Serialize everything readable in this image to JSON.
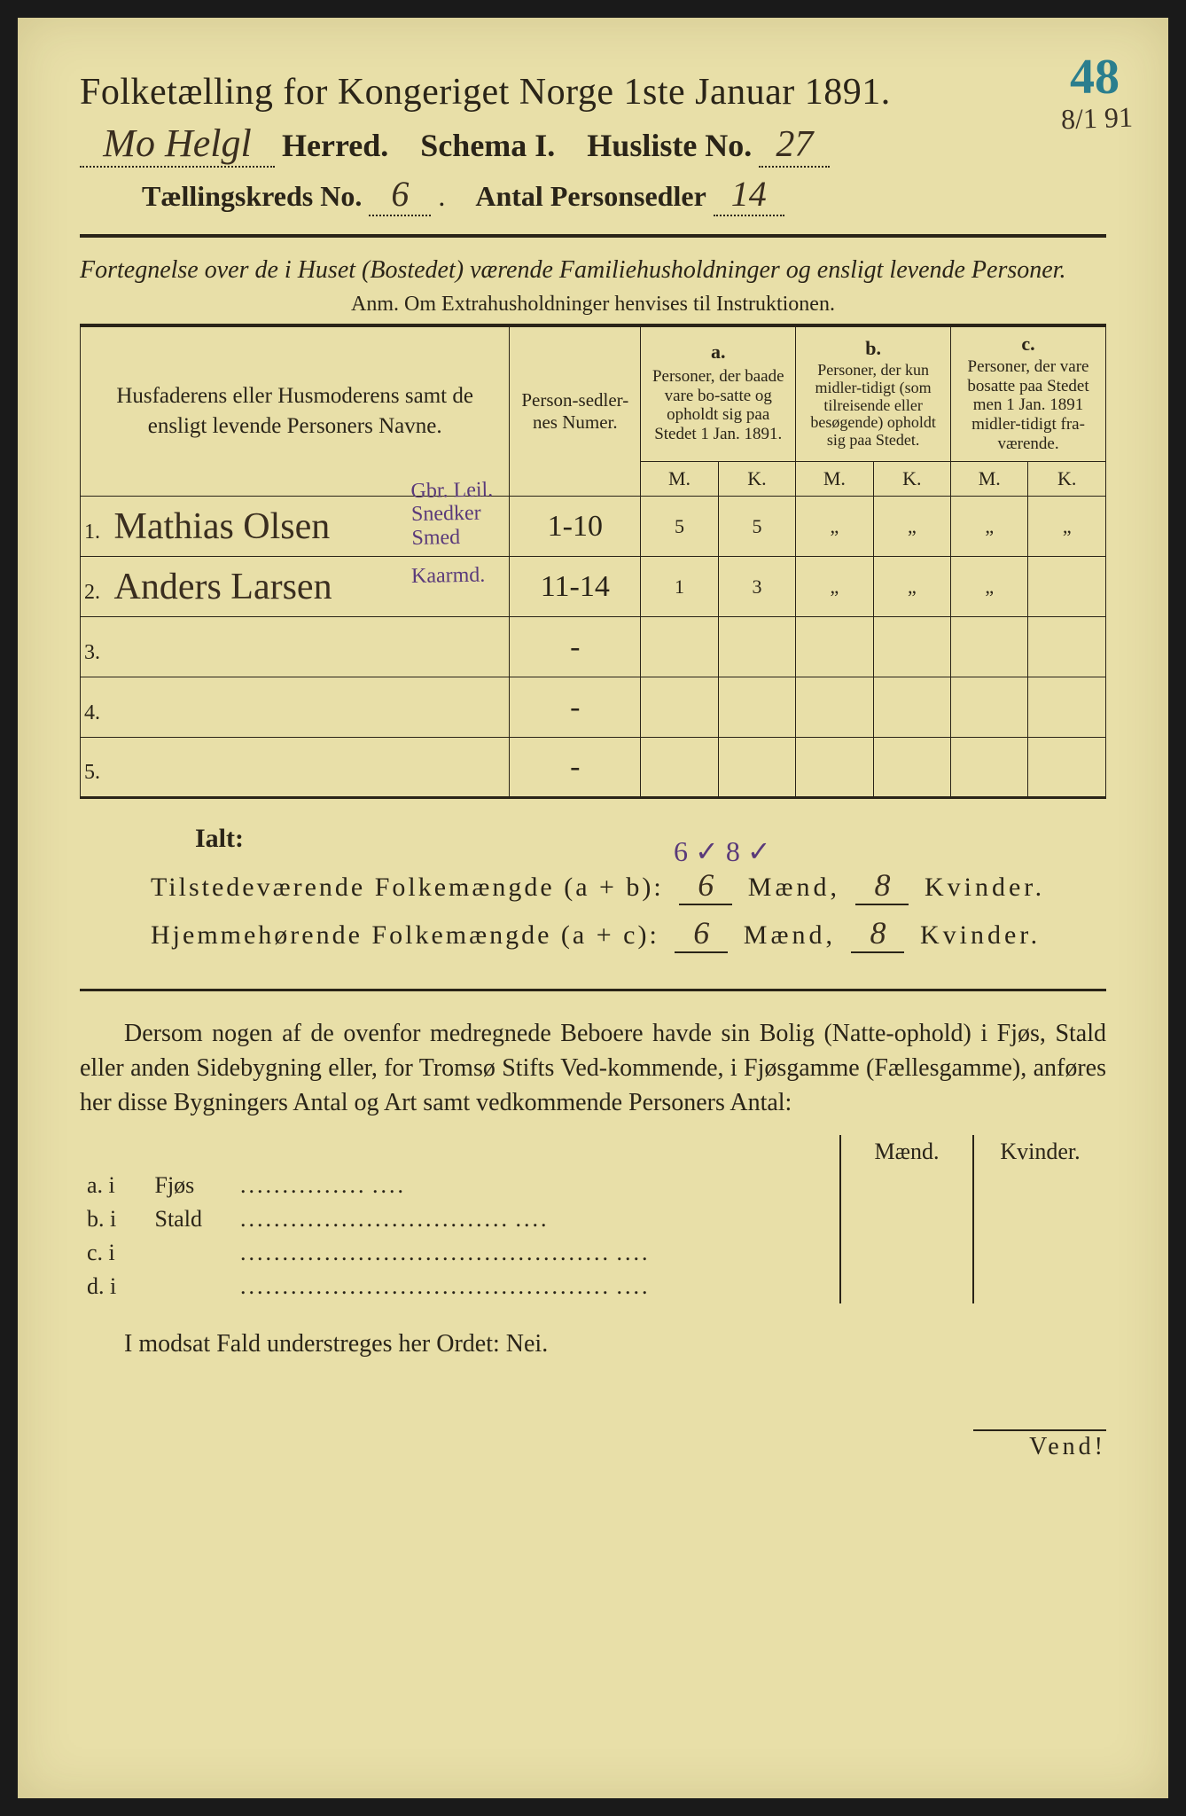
{
  "annotations": {
    "corner_number": "48",
    "corner_date": "8/1 91"
  },
  "header": {
    "title": "Folketælling for Kongeriget Norge 1ste Januar 1891.",
    "herred_value": "Mo Helgl",
    "herred_label": "Herred.",
    "schema_label": "Schema I.",
    "husliste_label": "Husliste No.",
    "husliste_value": "27",
    "kreds_label": "Tællingskreds No.",
    "kreds_value": "6",
    "antal_label": "Antal Personsedler",
    "antal_value": "14"
  },
  "intro": {
    "line1": "Fortegnelse over de i Huset (Bostedet) værende Familiehusholdninger og ensligt levende Personer.",
    "anm": "Anm.  Om Extrahusholdninger henvises til Instruktionen."
  },
  "table": {
    "col_names": "Husfaderens eller Husmoderens samt de ensligt levende Personers Navne.",
    "col_ps": "Person-sedler-nes Numer.",
    "col_a_label": "a.",
    "col_a": "Personer, der baade vare bo-satte og opholdt sig paa Stedet 1 Jan. 1891.",
    "col_b_label": "b.",
    "col_b": "Personer, der kun midler-tidigt (som tilreisende eller besøgende) opholdt sig paa Stedet.",
    "col_c_label": "c.",
    "col_c": "Personer, der vare bosatte paa Stedet men 1 Jan. 1891 midler-tidigt fra-værende.",
    "m": "M.",
    "k": "K.",
    "rows": [
      {
        "n": "1.",
        "name": "Mathias Olsen",
        "ps": "1-10",
        "am": "5",
        "ak": "5",
        "bm": "„",
        "bk": "„",
        "cm": "„",
        "ck": "„",
        "note": "Gbr. Leil.\nSnedker\nSmed"
      },
      {
        "n": "2.",
        "name": "Anders Larsen",
        "ps": "11-14",
        "am": "1",
        "ak": "3",
        "bm": "„",
        "bk": "„",
        "cm": "„",
        "ck": "",
        "note": "Kaarmd."
      },
      {
        "n": "3.",
        "name": "",
        "ps": "-",
        "am": "",
        "ak": "",
        "bm": "",
        "bk": "",
        "cm": "",
        "ck": "",
        "note": ""
      },
      {
        "n": "4.",
        "name": "",
        "ps": "-",
        "am": "",
        "ak": "",
        "bm": "",
        "bk": "",
        "cm": "",
        "ck": "",
        "note": ""
      },
      {
        "n": "5.",
        "name": "",
        "ps": "-",
        "am": "",
        "ak": "",
        "bm": "",
        "bk": "",
        "cm": "",
        "ck": "",
        "note": ""
      }
    ]
  },
  "totals": {
    "ialt": "Ialt:",
    "checks": "6 ✓   8 ✓",
    "line_ab": "Tilstedeværende Folkemængde (a + b):",
    "line_ac": "Hjemmehørende Folkemængde (a + c):",
    "ab_m": "6",
    "ab_k": "8",
    "ac_m": "6",
    "ac_k": "8",
    "maend": "Mænd,",
    "kvinder": "Kvinder."
  },
  "paragraph": "Dersom nogen af de ovenfor medregnede Beboere havde sin Bolig (Natte-ophold) i Fjøs, Stald eller anden Sidebygning eller, for Tromsø Stifts Ved-kommende, i Fjøsgamme (Fællesgamme), anføres her disse Bygningers Antal og Art samt vedkommende Personers Antal:",
  "buildings": {
    "maend": "Mænd.",
    "kvinder": "Kvinder.",
    "rows": [
      {
        "l": "a.  i",
        "t": "Fjøs",
        "d": "..............."
      },
      {
        "l": "b.  i",
        "t": "Stald",
        "d": "................................"
      },
      {
        "l": "c.  i",
        "t": "",
        "d": "............................................"
      },
      {
        "l": "d.  i",
        "t": "",
        "d": "............................................"
      }
    ]
  },
  "footer": {
    "nei": "I modsat Fald understreges her Ordet: Nei.",
    "vend": "Vend!"
  },
  "colors": {
    "paper": "#e8dfa8",
    "ink": "#2a2418",
    "handwriting": "#3a2e1f",
    "purple_ink": "#5a3a7a",
    "teal_crayon": "#2a7e8e"
  }
}
